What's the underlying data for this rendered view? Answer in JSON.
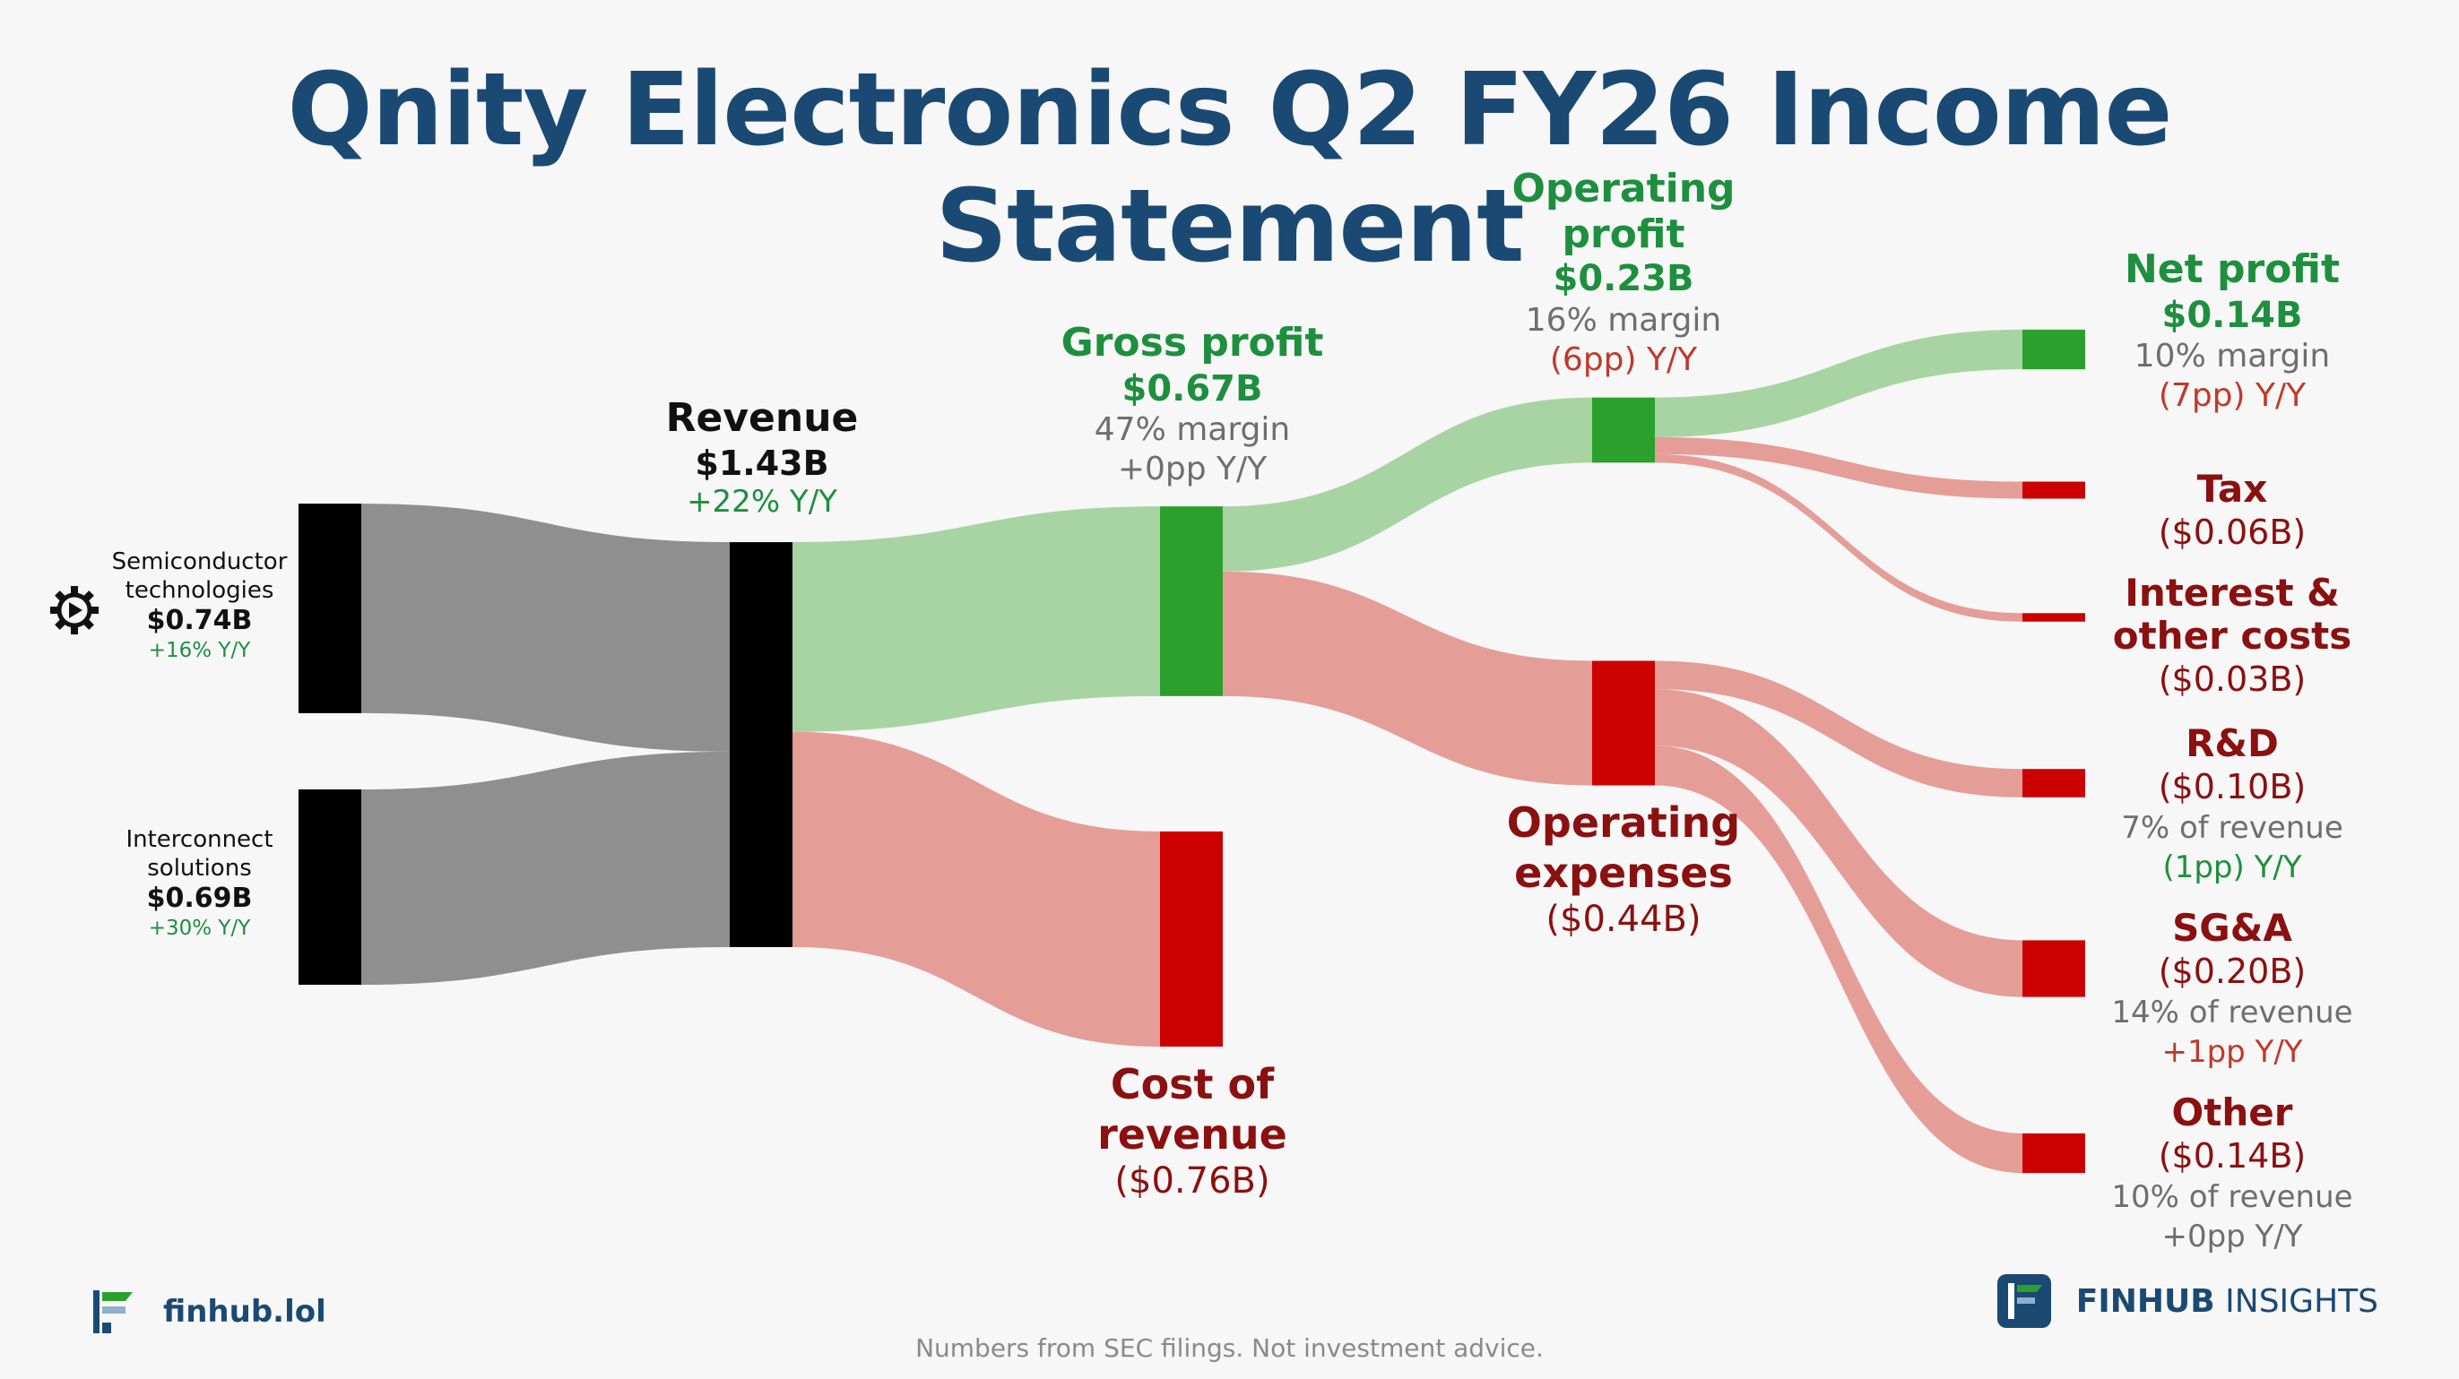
{
  "title": "Qnity Electronics Q2 FY26 Income Statement",
  "footer": {
    "site": "finhub.lol",
    "note": "Numbers from SEC filings. Not investment advice.",
    "brand_bold": "FINHUB",
    "brand_rest": " INSIGHTS"
  },
  "colors": {
    "title": "#1a4a73",
    "profit_green": "#1e8f3e",
    "cost_red": "#8b1010",
    "muted": "#6e6e6e",
    "yoy_green": "#1e8f3e",
    "yoy_red": "#c0392b",
    "node_black": "#000000",
    "node_green": "#2ca02c",
    "node_red": "#cc0000",
    "link_gray": "#8f8f8f",
    "link_green": "#a8d3a3",
    "link_red": "#e59d98"
  },
  "labels": {
    "semi": {
      "l1": "Semiconductor",
      "l2": "technologies",
      "value": "$0.74B",
      "yoy": "+16% Y/Y"
    },
    "inter": {
      "l1": "Interconnect",
      "l2": "solutions",
      "value": "$0.69B",
      "yoy": "+30% Y/Y"
    },
    "revenue": {
      "name": "Revenue",
      "value": "$1.43B",
      "yoy": "+22% Y/Y"
    },
    "gross": {
      "name": "Gross profit",
      "value": "$0.67B",
      "margin": "47% margin",
      "yoy": "+0pp Y/Y"
    },
    "cor": {
      "l1": "Cost of",
      "l2": "revenue",
      "value": "($0.76B)"
    },
    "op": {
      "l1": "Operating",
      "l2": "profit",
      "value": "$0.23B",
      "margin": "16% margin",
      "yoy": "(6pp) Y/Y"
    },
    "opex": {
      "l1": "Operating",
      "l2": "expenses",
      "value": "($0.44B)"
    },
    "net": {
      "name": "Net profit",
      "value": "$0.14B",
      "margin": "10% margin",
      "yoy": "(7pp) Y/Y"
    },
    "tax": {
      "name": "Tax",
      "value": "($0.06B)"
    },
    "interest": {
      "l1": "Interest &",
      "l2": "other costs",
      "value": "($0.03B)"
    },
    "rd": {
      "name": "R&D",
      "value": "($0.10B)",
      "pct": "7% of revenue",
      "yoy": "(1pp) Y/Y"
    },
    "sga": {
      "name": "SG&A",
      "value": "($0.20B)",
      "pct": "14% of revenue",
      "yoy": "+1pp Y/Y"
    },
    "other": {
      "name": "Other",
      "value": "($0.14B)",
      "pct": "10% of revenue",
      "yoy": "+0pp Y/Y"
    }
  },
  "chart_data": {
    "type": "sankey",
    "unit": "$B",
    "nodes": [
      {
        "id": "semi",
        "name": "Semiconductor technologies",
        "value": 0.74,
        "kind": "source"
      },
      {
        "id": "inter",
        "name": "Interconnect solutions",
        "value": 0.69,
        "kind": "source"
      },
      {
        "id": "revenue",
        "name": "Revenue",
        "value": 1.43,
        "kind": "source"
      },
      {
        "id": "gross",
        "name": "Gross profit",
        "value": 0.67,
        "kind": "profit"
      },
      {
        "id": "cor",
        "name": "Cost of revenue",
        "value": 0.76,
        "kind": "cost"
      },
      {
        "id": "op",
        "name": "Operating profit",
        "value": 0.23,
        "kind": "profit"
      },
      {
        "id": "opex",
        "name": "Operating expenses",
        "value": 0.44,
        "kind": "cost"
      },
      {
        "id": "net",
        "name": "Net profit",
        "value": 0.14,
        "kind": "profit"
      },
      {
        "id": "tax",
        "name": "Tax",
        "value": 0.06,
        "kind": "cost"
      },
      {
        "id": "interest",
        "name": "Interest & other costs",
        "value": 0.03,
        "kind": "cost"
      },
      {
        "id": "rd",
        "name": "R&D",
        "value": 0.1,
        "kind": "cost"
      },
      {
        "id": "sga",
        "name": "SG&A",
        "value": 0.2,
        "kind": "cost"
      },
      {
        "id": "other",
        "name": "Other",
        "value": 0.14,
        "kind": "cost"
      }
    ],
    "links": [
      {
        "source": "semi",
        "target": "revenue",
        "value": 0.74,
        "kind": "source"
      },
      {
        "source": "inter",
        "target": "revenue",
        "value": 0.69,
        "kind": "source"
      },
      {
        "source": "revenue",
        "target": "gross",
        "value": 0.67,
        "kind": "profit"
      },
      {
        "source": "revenue",
        "target": "cor",
        "value": 0.76,
        "kind": "cost"
      },
      {
        "source": "gross",
        "target": "op",
        "value": 0.23,
        "kind": "profit"
      },
      {
        "source": "gross",
        "target": "opex",
        "value": 0.44,
        "kind": "cost"
      },
      {
        "source": "op",
        "target": "net",
        "value": 0.14,
        "kind": "profit"
      },
      {
        "source": "op",
        "target": "tax",
        "value": 0.06,
        "kind": "cost"
      },
      {
        "source": "op",
        "target": "interest",
        "value": 0.03,
        "kind": "cost"
      },
      {
        "source": "opex",
        "target": "rd",
        "value": 0.1,
        "kind": "cost"
      },
      {
        "source": "opex",
        "target": "sga",
        "value": 0.2,
        "kind": "cost"
      },
      {
        "source": "opex",
        "target": "other",
        "value": 0.14,
        "kind": "cost"
      }
    ]
  }
}
